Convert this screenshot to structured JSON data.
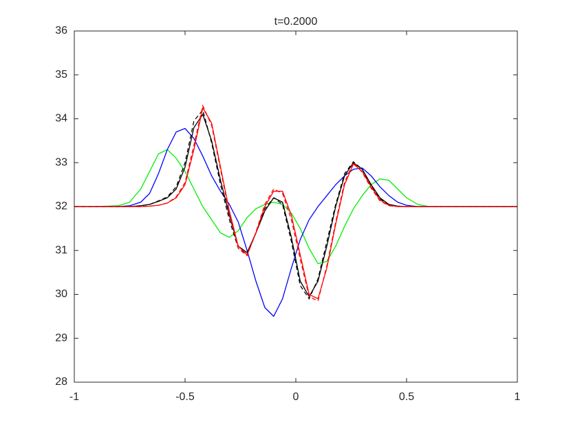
{
  "chart_data": {
    "type": "line",
    "title": "t=0.2000",
    "x": [
      -1,
      -0.9,
      -0.8,
      -0.75,
      -0.7,
      -0.66,
      -0.62,
      -0.58,
      -0.54,
      -0.5,
      -0.46,
      -0.42,
      -0.38,
      -0.34,
      -0.3,
      -0.26,
      -0.22,
      -0.18,
      -0.14,
      -0.1,
      -0.06,
      -0.02,
      0.02,
      0.06,
      0.1,
      0.14,
      0.18,
      0.22,
      0.26,
      0.3,
      0.34,
      0.38,
      0.42,
      0.46,
      0.5,
      0.55,
      0.6,
      0.7,
      0.8,
      0.9,
      1
    ],
    "series": [
      {
        "color": "#00ee00",
        "dashed": false,
        "values": [
          32,
          32,
          32.02,
          32.1,
          32.4,
          32.8,
          33.2,
          33.3,
          33.1,
          32.8,
          32.4,
          32.0,
          31.7,
          31.4,
          31.3,
          31.45,
          31.75,
          31.95,
          32.05,
          32.1,
          32.05,
          31.85,
          31.5,
          31.05,
          30.7,
          30.75,
          31.1,
          31.55,
          31.95,
          32.25,
          32.5,
          32.63,
          32.6,
          32.4,
          32.2,
          32.05,
          32.0,
          32,
          32,
          32,
          32
        ]
      },
      {
        "color": "#0000ff",
        "dashed": false,
        "values": [
          32,
          32,
          32,
          32.02,
          32.1,
          32.3,
          32.75,
          33.3,
          33.7,
          33.78,
          33.55,
          33.15,
          32.7,
          32.35,
          32.05,
          31.65,
          31.0,
          30.3,
          29.7,
          29.5,
          29.9,
          30.6,
          31.25,
          31.7,
          32.0,
          32.25,
          32.5,
          32.7,
          32.85,
          32.88,
          32.7,
          32.45,
          32.25,
          32.1,
          32.03,
          32,
          32,
          32,
          32,
          32,
          32
        ]
      },
      {
        "color": "#000000",
        "dashed": false,
        "values": [
          32,
          32,
          32,
          32,
          32.02,
          32.05,
          32.12,
          32.2,
          32.4,
          32.9,
          33.8,
          34.1,
          33.5,
          32.6,
          31.8,
          31.1,
          30.95,
          31.4,
          31.9,
          32.2,
          32.1,
          31.3,
          30.3,
          29.95,
          30.3,
          31.1,
          32.0,
          32.7,
          33.0,
          32.85,
          32.5,
          32.2,
          32.05,
          32.01,
          32,
          32,
          32,
          32,
          32,
          32,
          32
        ]
      },
      {
        "color": "#000000",
        "dashed": true,
        "values": [
          32,
          32,
          32,
          32,
          32.02,
          32.05,
          32.13,
          32.22,
          32.45,
          33.0,
          33.95,
          34.2,
          33.45,
          32.5,
          31.7,
          31.05,
          30.9,
          31.4,
          31.95,
          32.2,
          32.05,
          31.2,
          30.2,
          29.9,
          30.35,
          31.2,
          32.05,
          32.75,
          33.02,
          32.85,
          32.48,
          32.18,
          32.04,
          32.01,
          32,
          32,
          32,
          32,
          32,
          32,
          32
        ]
      },
      {
        "color": "#ff0000",
        "dashed": false,
        "values": [
          32,
          32,
          32,
          32,
          32,
          32.01,
          32.03,
          32.08,
          32.2,
          32.5,
          33.3,
          34.25,
          33.9,
          32.9,
          31.9,
          31.1,
          30.9,
          31.4,
          32.0,
          32.35,
          32.35,
          31.8,
          30.9,
          30.0,
          29.9,
          30.6,
          31.6,
          32.5,
          32.97,
          32.8,
          32.45,
          32.15,
          32.03,
          32,
          32,
          32,
          32,
          32,
          32,
          32,
          32
        ]
      },
      {
        "color": "#ff0000",
        "dashed": true,
        "values": [
          32,
          32,
          32,
          32,
          32,
          32.01,
          32.03,
          32.08,
          32.22,
          32.55,
          33.4,
          34.3,
          33.85,
          32.85,
          31.85,
          31.05,
          30.88,
          31.42,
          32.05,
          32.4,
          32.3,
          31.7,
          30.8,
          29.95,
          29.85,
          30.65,
          31.65,
          32.55,
          33.0,
          32.78,
          32.42,
          32.13,
          32.02,
          32,
          32,
          32,
          32,
          32,
          32,
          32,
          32
        ]
      }
    ],
    "xlim": [
      -1,
      1
    ],
    "xticks": [
      -1,
      -0.5,
      0,
      0.5,
      1
    ],
    "ylim": [
      28,
      36
    ],
    "yticks": [
      28,
      29,
      30,
      31,
      32,
      33,
      34,
      35,
      36
    ],
    "grid": false
  }
}
